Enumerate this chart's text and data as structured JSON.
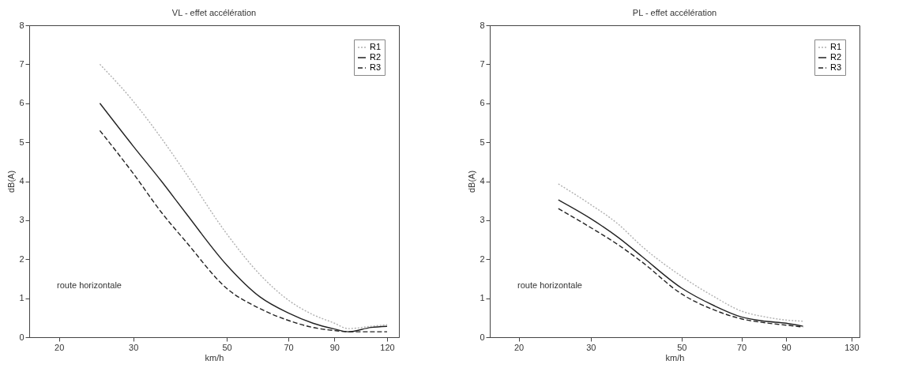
{
  "chart_data": [
    {
      "type": "line",
      "title": "VL - effet accélération",
      "xlabel": "km/h",
      "ylabel": "dB(A)",
      "log": "x",
      "xlim": [
        17,
        128
      ],
      "xticks": [
        20,
        30,
        50,
        70,
        90,
        120
      ],
      "ylim": [
        0,
        8
      ],
      "yticks": [
        0,
        1,
        2,
        3,
        4,
        5,
        6,
        7,
        8
      ],
      "legend": "top right",
      "annotations": [
        "route horizontale"
      ],
      "x": [
        25,
        30,
        35,
        40,
        50,
        60,
        70,
        80,
        90,
        97,
        110,
        120
      ],
      "series": [
        {
          "name": "R1",
          "color": "#b0b0b0",
          "line_style": "dotted",
          "values": [
            7.0,
            6.05,
            5.1,
            4.2,
            2.65,
            1.6,
            0.95,
            0.58,
            0.36,
            0.22,
            0.28,
            0.32
          ]
        },
        {
          "name": "R2",
          "color": "#222222",
          "line_style": "solid",
          "values": [
            6.0,
            4.9,
            4.0,
            3.18,
            1.85,
            1.03,
            0.62,
            0.36,
            0.21,
            0.14,
            0.25,
            0.28
          ]
        },
        {
          "name": "R3",
          "color": "#222222",
          "line_style": "dashed",
          "values": [
            5.3,
            4.2,
            3.2,
            2.45,
            1.25,
            0.73,
            0.43,
            0.25,
            0.17,
            0.14,
            0.14,
            0.14
          ]
        }
      ]
    },
    {
      "type": "line",
      "title": "PL - effet accélération",
      "xlabel": "km/h",
      "ylabel": "dB(A)",
      "log": "x",
      "xlim": [
        17,
        136
      ],
      "xticks": [
        20,
        30,
        50,
        70,
        90,
        130
      ],
      "ylim": [
        0,
        8
      ],
      "yticks": [
        0,
        1,
        2,
        3,
        4,
        5,
        6,
        7,
        8
      ],
      "legend": "top right",
      "annotations": [
        "route horizontale"
      ],
      "x": [
        25,
        30,
        35,
        40,
        50,
        60,
        70,
        80,
        90,
        99
      ],
      "series": [
        {
          "name": "R1",
          "color": "#b0b0b0",
          "line_style": "dotted",
          "values": [
            3.93,
            3.4,
            2.9,
            2.33,
            1.56,
            1.04,
            0.67,
            0.52,
            0.44,
            0.41
          ]
        },
        {
          "name": "R2",
          "color": "#222222",
          "line_style": "solid",
          "values": [
            3.52,
            3.04,
            2.56,
            2.07,
            1.26,
            0.81,
            0.52,
            0.41,
            0.36,
            0.28
          ]
        },
        {
          "name": "R3",
          "color": "#222222",
          "line_style": "dashed",
          "values": [
            3.3,
            2.81,
            2.37,
            1.93,
            1.11,
            0.7,
            0.47,
            0.37,
            0.31,
            0.26
          ]
        }
      ]
    }
  ]
}
